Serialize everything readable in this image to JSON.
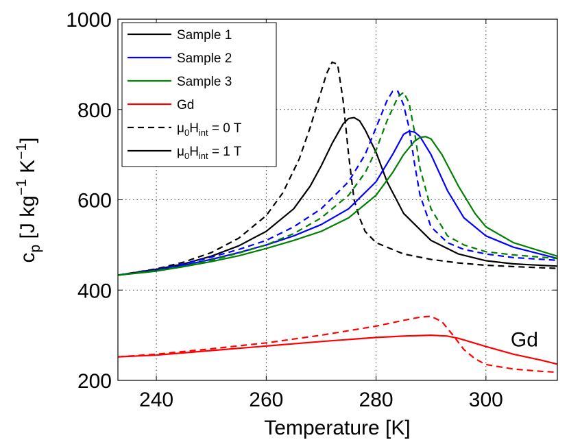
{
  "chart_data": {
    "type": "line",
    "xlabel": "Temperature [K]",
    "ylabel": {
      "main": "c",
      "sub": "p",
      "bracket_open": " [J kg",
      "exp1": "−1",
      "mid": " K",
      "exp2": "−1",
      "bracket_close": "]"
    },
    "xlim": [
      233,
      313
    ],
    "ylim": [
      200,
      1000
    ],
    "xticks": [
      240,
      260,
      280,
      300
    ],
    "yticks": [
      200,
      400,
      600,
      800,
      1000
    ],
    "grid": true,
    "legend_placement": "top-left",
    "legend": [
      {
        "label": "Sample 1",
        "color": "#000000",
        "dash": false
      },
      {
        "label": "Sample 2",
        "color": "#0000ff",
        "dash": false
      },
      {
        "label": "Sample 3",
        "color": "#008000",
        "dash": false
      },
      {
        "label": "Gd",
        "color": "#ff0000",
        "dash": false
      },
      {
        "label_parts": [
          "μ",
          "0",
          "H",
          "int",
          " = 0 T"
        ],
        "color": "#000000",
        "dash": true
      },
      {
        "label_parts": [
          "μ",
          "0",
          "H",
          "int",
          " = 1 T"
        ],
        "color": "#000000",
        "dash": false
      }
    ],
    "annotation": {
      "text": "Gd",
      "x": 307,
      "y": 290
    },
    "series": [
      {
        "name": "Sample 1",
        "field": "0 T",
        "color": "#000000",
        "dash": true,
        "x": [
          233,
          240,
          245,
          250,
          255,
          260,
          263,
          266,
          268,
          270,
          271,
          272,
          273,
          274,
          275,
          276,
          277,
          278,
          280,
          285,
          290,
          295,
          300,
          305,
          313
        ],
        "y": [
          433,
          447,
          462,
          483,
          515,
          565,
          615,
          690,
          760,
          840,
          880,
          905,
          900,
          820,
          700,
          600,
          560,
          530,
          505,
          480,
          468,
          460,
          455,
          452,
          448
        ]
      },
      {
        "name": "Sample 1",
        "field": "1 T",
        "color": "#000000",
        "dash": false,
        "x": [
          233,
          240,
          245,
          250,
          255,
          260,
          265,
          268,
          270,
          272,
          274,
          275,
          276,
          277,
          278,
          280,
          282,
          285,
          290,
          295,
          300,
          305,
          313
        ],
        "y": [
          433,
          446,
          458,
          475,
          498,
          530,
          580,
          630,
          675,
          725,
          768,
          780,
          782,
          775,
          755,
          705,
          640,
          570,
          510,
          480,
          465,
          458,
          453
        ]
      },
      {
        "name": "Sample 2",
        "field": "0 T",
        "color": "#0000ff",
        "dash": true,
        "x": [
          233,
          240,
          245,
          250,
          255,
          260,
          265,
          270,
          275,
          278,
          280,
          282,
          283,
          284,
          285,
          286,
          287,
          288,
          290,
          293,
          296,
          300,
          305,
          313
        ],
        "y": [
          433,
          445,
          458,
          473,
          490,
          510,
          540,
          580,
          640,
          700,
          760,
          820,
          840,
          840,
          810,
          760,
          680,
          610,
          540,
          505,
          490,
          480,
          472,
          466
        ]
      },
      {
        "name": "Sample 2",
        "field": "1 T",
        "color": "#0000ff",
        "dash": false,
        "x": [
          233,
          240,
          245,
          250,
          255,
          260,
          265,
          270,
          275,
          280,
          283,
          285,
          286,
          287,
          288,
          290,
          293,
          296,
          300,
          305,
          313
        ],
        "y": [
          433,
          444,
          455,
          468,
          483,
          500,
          520,
          545,
          580,
          640,
          700,
          745,
          752,
          750,
          740,
          700,
          620,
          560,
          520,
          495,
          470
        ]
      },
      {
        "name": "Sample 3",
        "field": "0 T",
        "color": "#008000",
        "dash": true,
        "x": [
          233,
          240,
          245,
          250,
          255,
          260,
          265,
          270,
          275,
          278,
          280,
          282,
          284,
          285,
          286,
          287,
          288,
          290,
          293,
          296,
          300,
          305,
          313
        ],
        "y": [
          433,
          443,
          453,
          466,
          482,
          500,
          525,
          560,
          610,
          660,
          710,
          775,
          828,
          838,
          815,
          750,
          670,
          580,
          520,
          500,
          485,
          478,
          470
        ]
      },
      {
        "name": "Sample 3",
        "field": "1 T",
        "color": "#008000",
        "dash": false,
        "x": [
          233,
          240,
          245,
          250,
          255,
          260,
          265,
          270,
          275,
          280,
          283,
          285,
          287,
          288,
          289,
          290,
          292,
          295,
          298,
          300,
          305,
          313
        ],
        "y": [
          433,
          442,
          452,
          463,
          476,
          492,
          510,
          530,
          560,
          610,
          660,
          700,
          730,
          738,
          740,
          735,
          700,
          630,
          570,
          540,
          505,
          475
        ]
      },
      {
        "name": "Gd",
        "field": "0 T",
        "color": "#ff0000",
        "dash": true,
        "x": [
          233,
          240,
          250,
          260,
          270,
          280,
          285,
          288,
          290,
          292,
          294,
          296,
          298,
          300,
          305,
          310,
          313
        ],
        "y": [
          252,
          258,
          270,
          283,
          300,
          320,
          333,
          340,
          342,
          330,
          300,
          268,
          248,
          235,
          225,
          220,
          218
        ]
      },
      {
        "name": "Gd",
        "field": "1 T",
        "color": "#ff0000",
        "dash": false,
        "x": [
          233,
          240,
          250,
          260,
          270,
          280,
          285,
          290,
          293,
          295,
          300,
          305,
          310,
          313
        ],
        "y": [
          252,
          256,
          266,
          276,
          286,
          295,
          298,
          300,
          298,
          293,
          275,
          258,
          245,
          236
        ]
      }
    ]
  }
}
